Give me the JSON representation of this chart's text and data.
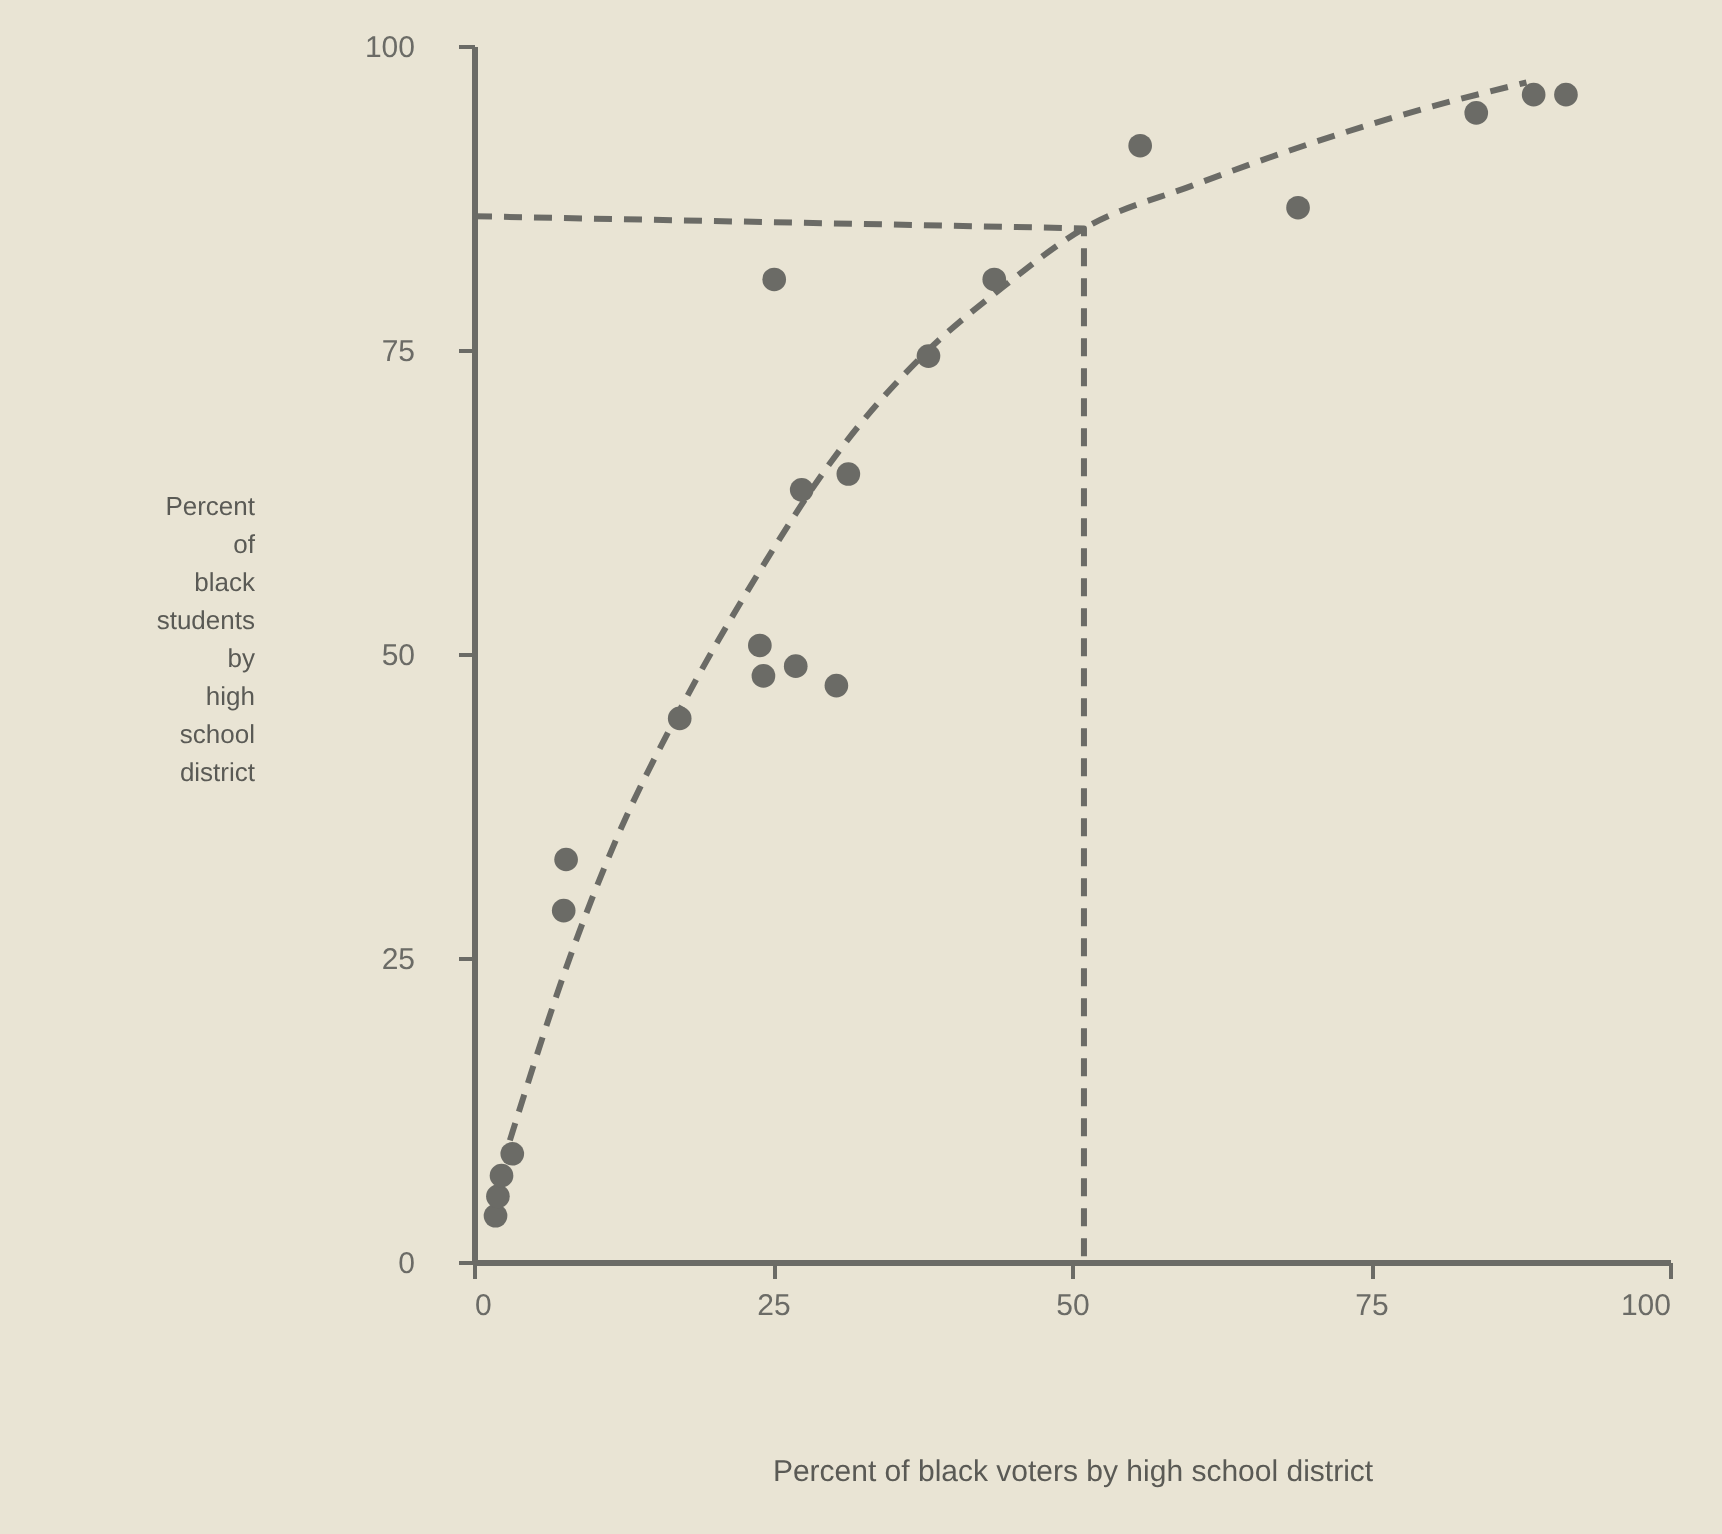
{
  "chart_data": {
    "type": "scatter",
    "xlabel": "Percent of black voters by high school district",
    "ylabel": "Percent of black students by high school district",
    "xlim": [
      0,
      100
    ],
    "ylim": [
      0,
      100
    ],
    "xticks": [
      0,
      25,
      50,
      75,
      100
    ],
    "yticks": [
      0,
      25,
      50,
      75,
      100
    ],
    "grid": false,
    "series": [
      {
        "color": "#6b6b66",
        "marker": "circle",
        "x": [
          1.8,
          2.0,
          2.3,
          3.2,
          7.5,
          7.7,
          17.2,
          23.9,
          24.2,
          26.9,
          30.3,
          25.1,
          43.5,
          38.0,
          27.4,
          31.3,
          55.7,
          68.9,
          83.8,
          88.6,
          91.3
        ],
        "values": [
          3.8,
          5.4,
          7.1,
          8.9,
          28.9,
          33.1,
          44.7,
          50.7,
          48.2,
          49.0,
          47.4,
          80.8,
          80.8,
          74.5,
          63.5,
          64.8,
          91.8,
          86.7,
          94.5,
          96,
          96
        ]
      },
      {
        "type": "line",
        "color": "#6b6b66",
        "line_style": "dashed",
        "marker": "none",
        "x": [
          3,
          8,
          12,
          17,
          24,
          30,
          38,
          44,
          51,
          60,
          70,
          80,
          88
        ],
        "values": [
          10,
          25,
          35,
          45,
          57,
          66,
          75,
          80,
          85,
          88.5,
          92,
          95,
          97
        ]
      },
      {
        "type": "line",
        "color": "#6b6b66",
        "line_style": "dashed",
        "marker": "none",
        "x": [
          0,
          51,
          51
        ],
        "values": [
          86,
          85,
          0
        ]
      }
    ]
  }
}
